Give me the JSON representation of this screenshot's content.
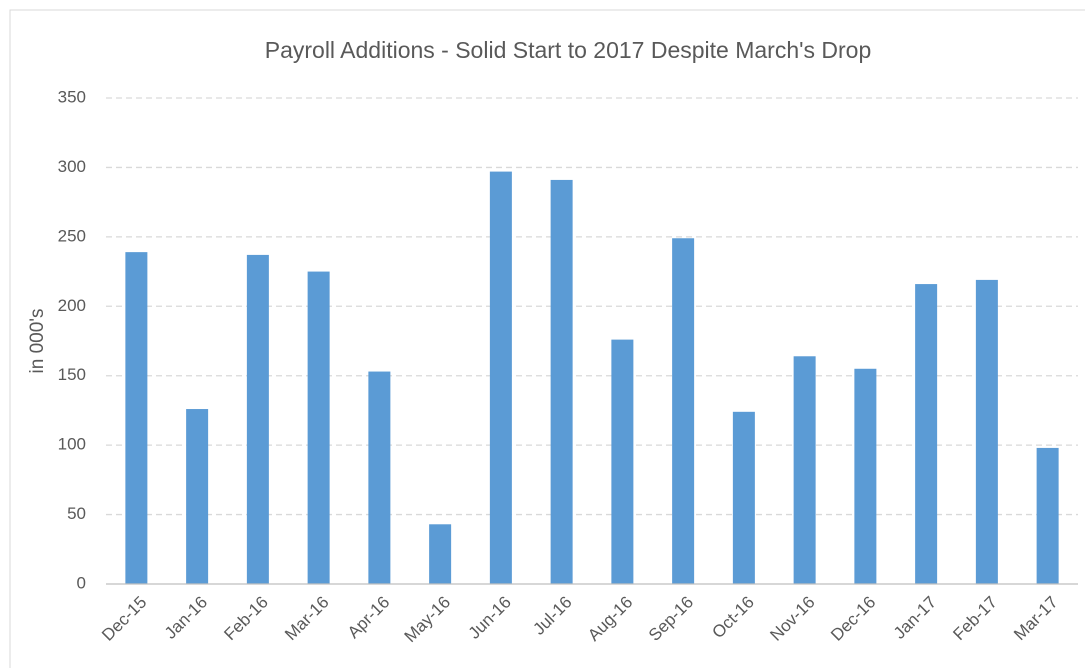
{
  "chart_data": {
    "type": "bar",
    "title": "Payroll Additions - Solid Start to 2017 Despite March's Drop",
    "y_label": "in 000's",
    "categories": [
      "Dec-15",
      "Jan-16",
      "Feb-16",
      "Mar-16",
      "Apr-16",
      "May-16",
      "Jun-16",
      "Jul-16",
      "Aug-16",
      "Sep-16",
      "Oct-16",
      "Nov-16",
      "Dec-16",
      "Jan-17",
      "Feb-17",
      "Mar-17"
    ],
    "values": [
      239,
      126,
      237,
      225,
      153,
      43,
      297,
      291,
      176,
      249,
      124,
      164,
      155,
      216,
      219,
      98
    ],
    "color": "#5b9bd5",
    "ylim": [
      0,
      350
    ],
    "yticks": [
      0,
      50,
      100,
      150,
      200,
      250,
      300,
      350
    ],
    "grid": true
  }
}
